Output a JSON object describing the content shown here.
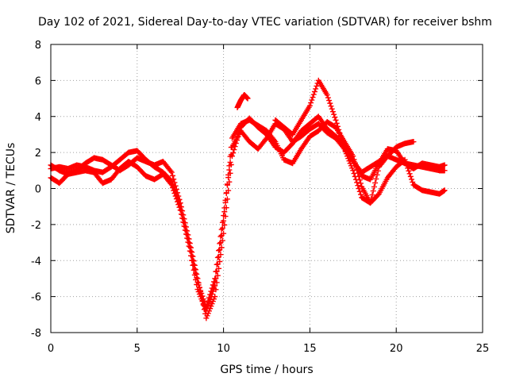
{
  "chart_data": {
    "type": "scatter",
    "title": "Day 102 of 2021, Sidereal Day-to-day VTEC variation (SDTVAR) for receiver bshm",
    "xlabel": "GPS time / hours",
    "ylabel": "SDTVAR / TECUs",
    "xlim": [
      0,
      25
    ],
    "ylim": [
      -8,
      8
    ],
    "xticks": [
      0,
      5,
      10,
      15,
      20,
      25
    ],
    "yticks": [
      -8,
      -6,
      -4,
      -2,
      0,
      2,
      4,
      6,
      8
    ],
    "grid": true,
    "marker": "+",
    "color": "#ff0000",
    "series": [
      {
        "x": [
          0.0,
          0.5,
          1.0,
          1.5,
          2.0,
          2.5,
          3.0,
          3.5,
          4.0,
          4.5,
          5.0,
          5.5,
          6.0,
          6.5,
          7.0,
          7.5,
          8.0,
          8.5,
          9.0,
          9.5,
          10.0,
          10.5,
          11.0,
          11.5,
          12.0,
          12.5,
          13.0,
          13.5,
          14.0,
          14.5,
          15.0,
          15.5,
          16.0,
          16.5,
          17.0,
          17.5,
          18.0,
          18.5,
          19.0,
          19.5,
          20.0,
          20.5,
          21.0,
          21.5,
          22.0,
          22.5,
          22.8
        ],
        "y": [
          1.1,
          1.2,
          1.1,
          1.3,
          1.2,
          1.0,
          0.9,
          1.2,
          1.6,
          2.0,
          2.1,
          1.6,
          1.2,
          0.9,
          0.4,
          -1.0,
          -3.0,
          -5.2,
          -6.6,
          -5.0,
          -1.5,
          2.3,
          3.2,
          2.6,
          2.2,
          2.8,
          3.6,
          3.3,
          2.6,
          2.9,
          3.3,
          3.6,
          3.1,
          2.8,
          2.2,
          1.5,
          0.9,
          1.2,
          1.5,
          1.8,
          1.6,
          1.4,
          1.3,
          1.2,
          1.1,
          1.0,
          1.0
        ]
      },
      {
        "x": [
          0.0,
          0.5,
          1.0,
          1.5,
          2.0,
          2.5,
          3.0,
          3.5,
          4.0,
          4.5,
          5.0,
          5.5,
          6.0,
          6.5,
          7.0,
          7.5,
          8.0,
          8.5,
          9.0,
          9.5,
          10.0,
          10.5,
          11.0,
          11.5,
          12.0,
          12.5,
          13.0,
          13.5,
          14.0,
          14.5,
          15.0,
          15.5,
          16.0,
          16.5,
          17.0,
          17.5,
          18.0,
          18.5,
          19.0,
          19.5,
          20.0,
          20.5,
          21.0,
          21.5,
          22.0,
          22.5,
          22.8
        ],
        "y": [
          0.6,
          0.3,
          0.8,
          1.0,
          1.4,
          1.7,
          1.6,
          1.3,
          1.0,
          1.3,
          1.7,
          1.5,
          1.3,
          1.5,
          0.9,
          -0.8,
          -2.8,
          -5.0,
          -7.2,
          -6.0,
          -2.5,
          1.8,
          3.4,
          3.9,
          3.4,
          3.0,
          2.3,
          2.0,
          2.5,
          3.2,
          3.6,
          4.0,
          3.3,
          2.9,
          2.4,
          1.6,
          0.7,
          0.5,
          1.4,
          2.2,
          2.1,
          1.4,
          1.1,
          1.4,
          1.3,
          1.2,
          1.3
        ]
      },
      {
        "x": [
          0.0,
          0.5,
          1.0,
          1.5,
          2.0,
          2.5,
          3.0,
          3.5,
          4.0,
          4.5,
          5.0,
          5.5,
          6.0,
          6.5,
          7.0,
          7.5,
          8.0,
          8.5,
          9.0,
          9.5,
          10.0,
          10.5,
          11.0,
          11.5,
          12.0,
          12.5,
          13.0,
          13.5,
          14.0,
          14.5,
          15.0,
          15.5,
          16.0,
          16.5,
          17.0,
          17.5,
          18.0,
          18.5,
          19.0,
          19.5,
          20.0,
          20.5,
          21.0,
          21.5,
          22.0,
          22.5,
          22.8
        ],
        "y": [
          1.3,
          1.0,
          0.8,
          0.9,
          1.0,
          0.9,
          0.3,
          0.5,
          1.1,
          1.5,
          1.2,
          0.7,
          0.5,
          0.8,
          0.2,
          -1.2,
          -3.2,
          -5.6,
          -6.8,
          -5.4,
          -1.8,
          2.8,
          3.6,
          3.8,
          3.5,
          3.2,
          2.6,
          1.6,
          1.4,
          2.2,
          2.9,
          3.2,
          3.7,
          3.4,
          2.6,
          1.8,
          0.1,
          -0.8,
          -0.3,
          0.6,
          1.2,
          1.6,
          0.2,
          -0.1,
          -0.2,
          -0.3,
          -0.1
        ]
      },
      {
        "x": [
          10.8,
          11.0,
          11.2,
          11.4,
          13.0,
          13.5,
          14.0,
          14.5,
          15.0,
          15.5,
          16.0,
          16.5,
          17.0,
          17.5,
          18.0,
          18.5,
          19.0,
          19.5,
          20.0,
          20.5,
          21.0
        ],
        "y": [
          4.5,
          4.9,
          5.2,
          5.0,
          3.8,
          3.4,
          3.0,
          3.8,
          4.6,
          6.0,
          5.2,
          3.8,
          2.2,
          1.0,
          -0.5,
          -0.8,
          1.2,
          1.8,
          2.3,
          2.5,
          2.6
        ]
      }
    ]
  }
}
